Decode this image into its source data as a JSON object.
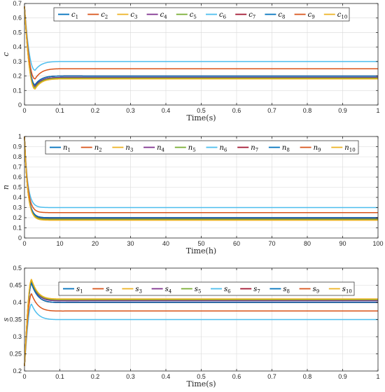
{
  "chart_data": [
    {
      "type": "line",
      "id": "c",
      "ylabel": "c",
      "xlabel": "Time(s)",
      "xlim": [
        0,
        1
      ],
      "ylim": [
        0,
        0.7
      ],
      "xticks": [
        "0",
        "0.1",
        "0.2",
        "0.3",
        "0.4",
        "0.5",
        "0.6",
        "0.7",
        "0.8",
        "0.9",
        "1"
      ],
      "yticks": [
        "0",
        "0.1",
        "0.2",
        "0.3",
        "0.4",
        "0.5",
        "0.6",
        "0.7"
      ],
      "grid": true,
      "legend_position": "top, horizontal",
      "series": [
        {
          "name": "c",
          "sub": "1",
          "color": "#0072bd",
          "start": 0.68,
          "trough": 0.13,
          "t_trough": 0.03,
          "final": 0.19
        },
        {
          "name": "c",
          "sub": "2",
          "color": "#d95319",
          "start": 0.68,
          "trough": 0.14,
          "t_trough": 0.03,
          "final": 0.2
        },
        {
          "name": "c",
          "sub": "3",
          "color": "#edb120",
          "start": 0.68,
          "trough": 0.12,
          "t_trough": 0.03,
          "final": 0.18
        },
        {
          "name": "c",
          "sub": "4",
          "color": "#7e2f8e",
          "start": 0.68,
          "trough": 0.13,
          "t_trough": 0.03,
          "final": 0.19
        },
        {
          "name": "c",
          "sub": "5",
          "color": "#77ac30",
          "start": 0.68,
          "trough": 0.12,
          "t_trough": 0.03,
          "final": 0.185
        },
        {
          "name": "c",
          "sub": "6",
          "color": "#4dbeee",
          "start": 0.68,
          "trough": 0.24,
          "t_trough": 0.03,
          "final": 0.3
        },
        {
          "name": "c",
          "sub": "7",
          "color": "#a2142f",
          "start": 0.68,
          "trough": 0.14,
          "t_trough": 0.03,
          "final": 0.2
        },
        {
          "name": "c",
          "sub": "8",
          "color": "#0072bd",
          "start": 0.68,
          "trough": 0.14,
          "t_trough": 0.03,
          "final": 0.2
        },
        {
          "name": "c",
          "sub": "9",
          "color": "#d95319",
          "start": 0.68,
          "trough": 0.18,
          "t_trough": 0.03,
          "final": 0.25
        },
        {
          "name": "c",
          "sub": "10",
          "color": "#edb120",
          "start": 0.68,
          "trough": 0.11,
          "t_trough": 0.03,
          "final": 0.18
        }
      ]
    },
    {
      "type": "line",
      "id": "n",
      "ylabel": "n",
      "xlabel": "Time(h)",
      "xlim": [
        0,
        100
      ],
      "ylim": [
        0,
        1
      ],
      "xticks": [
        "0",
        "10",
        "20",
        "30",
        "40",
        "50",
        "60",
        "70",
        "80",
        "90",
        "100"
      ],
      "yticks": [
        "0",
        "0.1",
        "0.2",
        "0.3",
        "0.4",
        "0.5",
        "0.6",
        "0.7",
        "0.8",
        "0.9",
        "1"
      ],
      "grid": true,
      "legend_position": "top, horizontal",
      "series": [
        {
          "name": "n",
          "sub": "1",
          "color": "#0072bd",
          "start": 1.0,
          "final": 0.19
        },
        {
          "name": "n",
          "sub": "2",
          "color": "#d95319",
          "start": 1.0,
          "final": 0.2
        },
        {
          "name": "n",
          "sub": "3",
          "color": "#edb120",
          "start": 1.0,
          "final": 0.18
        },
        {
          "name": "n",
          "sub": "4",
          "color": "#7e2f8e",
          "start": 1.0,
          "final": 0.19
        },
        {
          "name": "n",
          "sub": "5",
          "color": "#77ac30",
          "start": 1.0,
          "final": 0.185
        },
        {
          "name": "n",
          "sub": "6",
          "color": "#4dbeee",
          "start": 1.0,
          "final": 0.3
        },
        {
          "name": "n",
          "sub": "7",
          "color": "#a2142f",
          "start": 1.0,
          "final": 0.2
        },
        {
          "name": "n",
          "sub": "8",
          "color": "#0072bd",
          "start": 1.0,
          "final": 0.2
        },
        {
          "name": "n",
          "sub": "9",
          "color": "#d95319",
          "start": 1.0,
          "final": 0.25
        },
        {
          "name": "n",
          "sub": "10",
          "color": "#edb120",
          "start": 1.0,
          "final": 0.175
        }
      ]
    },
    {
      "type": "line",
      "id": "s",
      "ylabel": "s",
      "xlabel": "Time(s)",
      "xlim": [
        0,
        1
      ],
      "ylim": [
        0.2,
        0.5
      ],
      "xticks": [
        "0",
        "0.1",
        "0.2",
        "0.3",
        "0.4",
        "0.5",
        "0.6",
        "0.7",
        "0.8",
        "0.9",
        "1"
      ],
      "yticks": [
        "0.2",
        "0.25",
        "0.3",
        "0.35",
        "0.4",
        "0.45",
        "0.5"
      ],
      "grid": true,
      "legend_position": "top, horizontal",
      "series": [
        {
          "name": "s",
          "sub": "1",
          "color": "#0072bd",
          "start": 0.215,
          "peak": 0.46,
          "t_peak": 0.02,
          "final": 0.405
        },
        {
          "name": "s",
          "sub": "2",
          "color": "#d95319",
          "start": 0.215,
          "peak": 0.455,
          "t_peak": 0.02,
          "final": 0.4
        },
        {
          "name": "s",
          "sub": "3",
          "color": "#edb120",
          "start": 0.215,
          "peak": 0.465,
          "t_peak": 0.02,
          "final": 0.41
        },
        {
          "name": "s",
          "sub": "4",
          "color": "#7e2f8e",
          "start": 0.215,
          "peak": 0.46,
          "t_peak": 0.02,
          "final": 0.405
        },
        {
          "name": "s",
          "sub": "5",
          "color": "#77ac30",
          "start": 0.215,
          "peak": 0.463,
          "t_peak": 0.02,
          "final": 0.408
        },
        {
          "name": "s",
          "sub": "6",
          "color": "#4dbeee",
          "start": 0.215,
          "peak": 0.395,
          "t_peak": 0.02,
          "final": 0.35
        },
        {
          "name": "s",
          "sub": "7",
          "color": "#a2142f",
          "start": 0.215,
          "peak": 0.455,
          "t_peak": 0.02,
          "final": 0.4
        },
        {
          "name": "s",
          "sub": "8",
          "color": "#0072bd",
          "start": 0.215,
          "peak": 0.455,
          "t_peak": 0.02,
          "final": 0.4
        },
        {
          "name": "s",
          "sub": "9",
          "color": "#d95319",
          "start": 0.215,
          "peak": 0.425,
          "t_peak": 0.02,
          "final": 0.375
        },
        {
          "name": "s",
          "sub": "10",
          "color": "#edb120",
          "start": 0.215,
          "peak": 0.467,
          "t_peak": 0.02,
          "final": 0.41
        }
      ]
    }
  ]
}
